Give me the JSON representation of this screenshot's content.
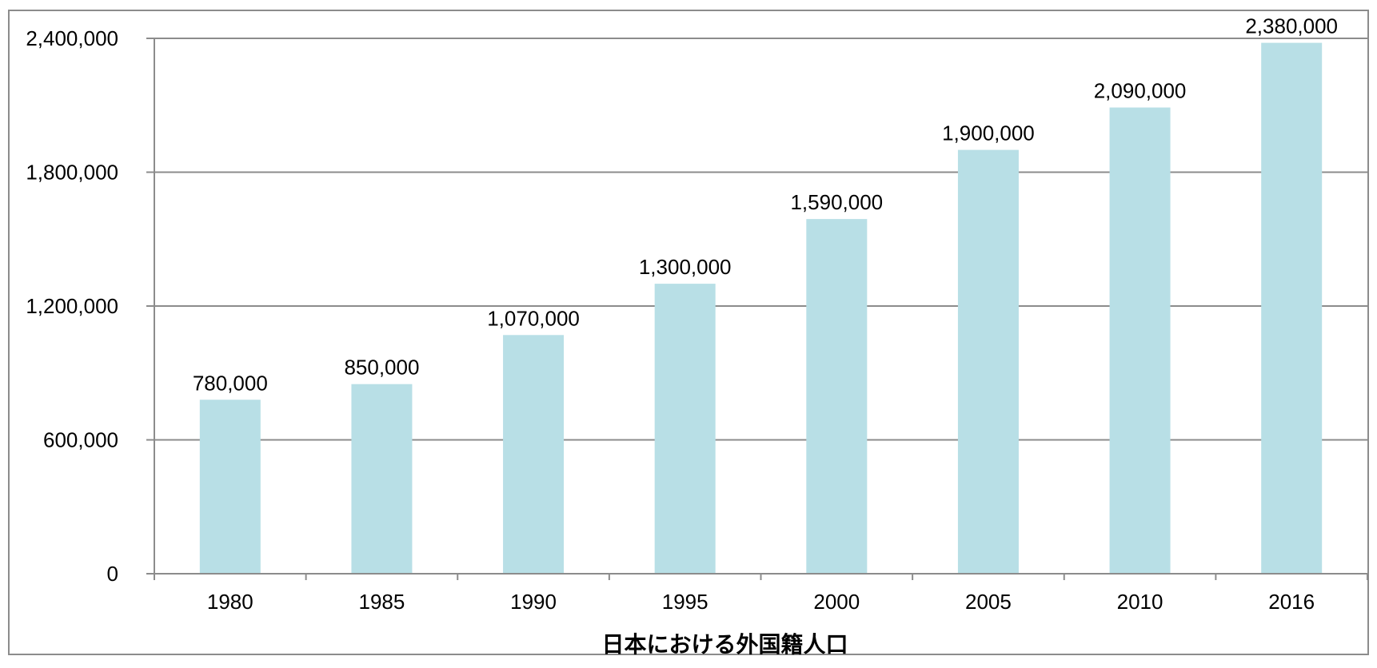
{
  "chart_data": {
    "type": "bar",
    "categories": [
      "1980",
      "1985",
      "1990",
      "1995",
      "2000",
      "2005",
      "2010",
      "2016"
    ],
    "values": [
      780000,
      850000,
      1070000,
      1300000,
      1590000,
      1900000,
      2090000,
      2380000
    ],
    "data_labels": [
      "780,000",
      "850,000",
      "1,070,000",
      "1,300,000",
      "1,590,000",
      "1,900,000",
      "2,090,000",
      "2,380,000"
    ],
    "y_ticks": [
      0,
      600000,
      1200000,
      1800000,
      2400000
    ],
    "y_tick_labels": [
      "0",
      "600,000",
      "1,200,000",
      "1,800,000",
      "2,400,000"
    ],
    "title": "",
    "xlabel": "日本における外国籍人口",
    "ylabel": "",
    "ylim": [
      0,
      2400000
    ],
    "grid": true,
    "legend": "none",
    "colors": {
      "bar": "#b8dfe6",
      "grid": "#8c8c8c",
      "axis": "#8c8c8c"
    }
  }
}
